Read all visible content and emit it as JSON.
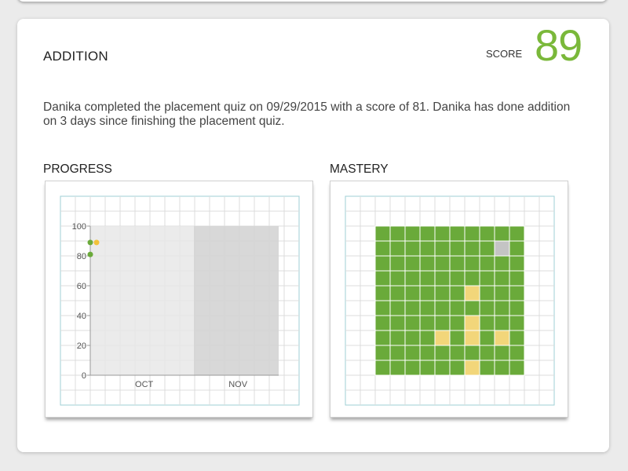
{
  "section": {
    "title": "ADDITION",
    "score_label": "SCORE",
    "score_value": "89",
    "summary": "Danika completed the placement quiz on 09/29/2015 with a score of 81. Danika has done addition on 3 days since finishing the placement quiz."
  },
  "progress": {
    "title": "PROGRESS",
    "chart_data": {
      "type": "scatter",
      "ylim": [
        0,
        100
      ],
      "y_ticks": [
        "0",
        "20",
        "40",
        "60",
        "80",
        "100"
      ],
      "x_categories": [
        "OCT",
        "NOV"
      ],
      "points": [
        {
          "y": 81,
          "color": "#6aaa3a"
        },
        {
          "y": 89,
          "color": "#6aaa3a"
        },
        {
          "y": 89,
          "color": "#f2c23a"
        }
      ]
    }
  },
  "mastery": {
    "title": "MASTERY",
    "colors": {
      "mastered": "#6aaa3a",
      "practicing": "#f2d67a",
      "not_started": "#c4c4c4"
    },
    "rows": [
      "GGGGGGGGGG",
      "GGGGGGGGNG",
      "GGGGGGGGGG",
      "GGGGGGGGGG",
      "GGGGGGYGGG",
      "GGGGGGGGGG",
      "GGGGGGYGGG",
      "GGGGYGYGYG",
      "GGGGGGGGGG",
      "GGGGGGYGGG"
    ]
  }
}
